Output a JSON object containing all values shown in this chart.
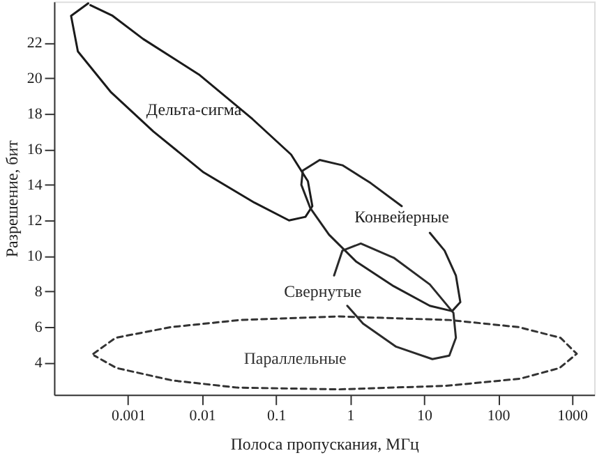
{
  "chart_data": {
    "type": "line",
    "xlabel": "Полоса пропускания, МГц",
    "ylabel": "Разрешение, бит",
    "log": "x",
    "xlim": [
      0.0001,
      2000
    ],
    "xticks": [
      0.001,
      0.01,
      0.1,
      1,
      10,
      100,
      1000
    ],
    "ylim": [
      2.2,
      24.3
    ],
    "yticks": [
      4,
      6,
      8,
      10,
      12,
      14,
      16,
      18,
      20,
      22
    ],
    "grid": false,
    "legend": false,
    "marker": "none",
    "series": [
      {
        "name": "Дельта-сигма",
        "color": "#1a1a1a",
        "line_style": "solid",
        "x": [
          0.00029,
          0.00017,
          0.00021,
          0.00059,
          0.0022,
          0.0105,
          0.051,
          0.15,
          0.25,
          0.31,
          0.27,
          0.16,
          0.048,
          0.0091,
          0.0016,
          0.00062,
          0.00031
        ],
        "values": [
          24.2,
          23.5,
          21.5,
          19.2,
          17.0,
          14.7,
          13.0,
          12.0,
          12.2,
          12.8,
          14.2,
          15.7,
          17.7,
          20.2,
          22.2,
          23.5,
          24.1
        ]
      },
      {
        "name": "Конвейерные",
        "color": "#222222",
        "line_style": "solid",
        "x": [
          5.0,
          1.9,
          0.79,
          0.39,
          0.23,
          0.22,
          0.29,
          0.52,
          1.2,
          3.9,
          12,
          24,
          31,
          27,
          19,
          12
        ],
        "values": [
          12.8,
          14.1,
          15.1,
          15.4,
          14.8,
          14.0,
          12.7,
          11.2,
          9.7,
          8.3,
          7.2,
          6.9,
          7.4,
          8.9,
          10.3,
          11.3
        ]
      },
      {
        "name": "Свернутые",
        "color": "#2a2a2a",
        "line_style": "solid",
        "x": [
          0.61,
          0.79,
          1.4,
          3.9,
          12,
          25,
          27,
          22,
          13,
          4.2,
          1.5,
          0.92
        ],
        "values": [
          8.9,
          10.3,
          10.7,
          9.9,
          8.4,
          6.8,
          5.4,
          4.4,
          4.2,
          4.9,
          6.2,
          7.2
        ]
      },
      {
        "name": "Параллельные",
        "color": "#333333",
        "line_style": "dashed",
        "x": [
          0.00034,
          0.00068,
          0.0038,
          0.033,
          0.69,
          22,
          190,
          700,
          1160,
          680,
          200,
          20,
          0.7,
          0.03,
          0.004,
          0.0007,
          0.00035
        ],
        "values": [
          4.5,
          5.4,
          6.0,
          6.4,
          6.6,
          6.4,
          6.0,
          5.4,
          4.5,
          3.7,
          3.1,
          2.7,
          2.5,
          2.6,
          3.0,
          3.7,
          4.4
        ]
      }
    ]
  }
}
